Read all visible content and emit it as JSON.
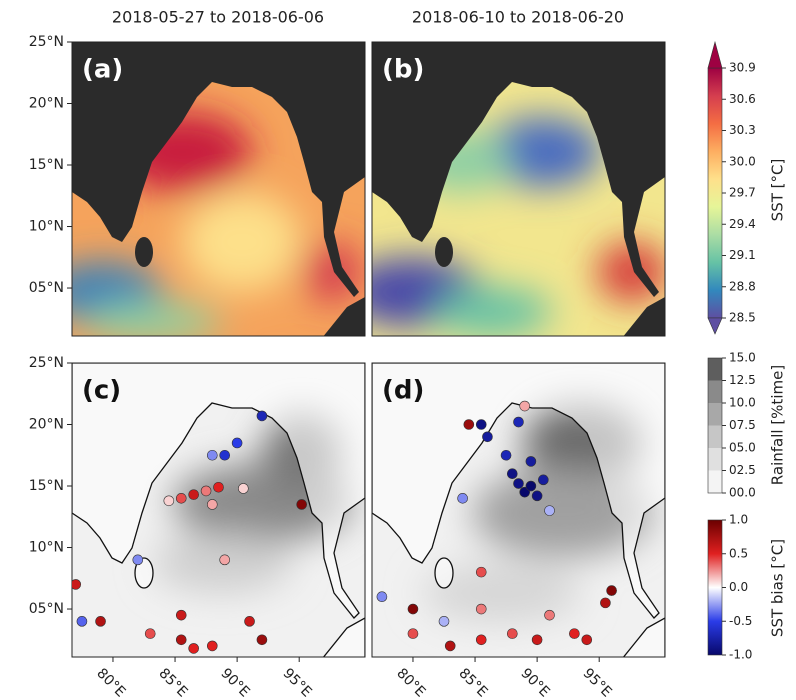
{
  "column_titles": [
    "2018-05-27 to 2018-06-06",
    "2018-06-10 to 2018-06-20"
  ],
  "panels": [
    {
      "label": "(a)"
    },
    {
      "label": "(b)"
    },
    {
      "label": "(c)",
      "points": {
        "lon": [
          84.5,
          85.5,
          86.5,
          87.5,
          88.5,
          88,
          89,
          90,
          92,
          90.5,
          95.2,
          88,
          82,
          77,
          79,
          77.5,
          83,
          85.5,
          85.5,
          88,
          91,
          92,
          86.5,
          89
        ],
        "lat": [
          13.8,
          14.0,
          14.3,
          14.6,
          14.9,
          17.5,
          17.5,
          18.5,
          20.7,
          14.8,
          13.5,
          13.5,
          9,
          7,
          4,
          4,
          3,
          4.5,
          2.5,
          2,
          4,
          2.5,
          1.8,
          9
        ],
        "bias": [
          0.1,
          0.4,
          0.6,
          0.3,
          0.5,
          -0.3,
          -0.6,
          -0.5,
          -0.7,
          0.1,
          0.9,
          0.2,
          -0.3,
          0.6,
          0.7,
          -0.4,
          0.4,
          0.6,
          0.7,
          0.5,
          0.6,
          0.8,
          0.5,
          0.2
        ]
      }
    },
    {
      "label": "(d)",
      "points": {
        "lon": [
          89,
          89.5,
          90,
          88.5,
          90.5,
          88,
          89.5,
          87.5,
          86,
          85.5,
          88.5,
          91,
          84,
          84.5,
          89,
          80,
          80,
          77.5,
          85.5,
          85.5,
          85.5,
          88,
          90,
          91,
          93,
          96,
          95.5,
          94,
          83,
          82.5
        ],
        "lat": [
          14.5,
          15,
          14.2,
          15.2,
          15.5,
          16,
          17,
          17.5,
          19,
          20,
          20.2,
          13,
          14,
          20,
          21.5,
          5,
          3,
          6,
          8,
          5,
          2.5,
          3,
          2.5,
          4.5,
          3,
          6.5,
          5.5,
          2.5,
          2,
          4
        ],
        "bias": [
          -1,
          -1,
          -0.9,
          -0.9,
          -0.8,
          -0.9,
          -0.8,
          -0.7,
          -0.8,
          -0.9,
          -0.7,
          -0.2,
          -0.3,
          0.8,
          0.2,
          0.9,
          0.4,
          -0.3,
          0.4,
          0.3,
          0.5,
          0.4,
          0.6,
          0.3,
          0.5,
          0.9,
          0.7,
          0.6,
          0.7,
          -0.2
        ]
      }
    }
  ],
  "map_axes": {
    "xlim": [
      76.7,
      100.3
    ],
    "ylim": [
      1.1,
      25
    ],
    "xticks": [
      {
        "value": 80,
        "label": "80°E"
      },
      {
        "value": 85,
        "label": "85°E"
      },
      {
        "value": 90,
        "label": "90°E"
      },
      {
        "value": 95,
        "label": "95°E"
      }
    ],
    "yticks": [
      {
        "value": 25,
        "label": "25°N"
      },
      {
        "value": 20,
        "label": "20°N"
      },
      {
        "value": 15,
        "label": "15°N"
      },
      {
        "value": 10,
        "label": "10°N"
      },
      {
        "value": 5,
        "label": "05°N"
      }
    ]
  },
  "colorbars": {
    "sst": {
      "label": "SST [°C]",
      "lim": [
        28.5,
        30.9
      ],
      "ticks": [
        28.5,
        28.8,
        29.1,
        29.4,
        29.7,
        {
          "value": 30,
          "label": "30.0"
        },
        30.3,
        30.6,
        30.9
      ],
      "colors": [
        "#5e4fa2",
        "#3288bd",
        "#66c2a5",
        "#abdda4",
        "#e6f598",
        "#fee08b",
        "#fdae61",
        "#f46d43",
        "#d53e4f",
        "#9e0142"
      ]
    },
    "rainfall": {
      "label": "Rainfall [%time]",
      "lim": [
        0,
        15
      ],
      "ticks": [
        {
          "value": 0,
          "label": "00.0"
        },
        {
          "value": 2.5,
          "label": "02.5"
        },
        {
          "value": 5,
          "label": "05.0"
        },
        {
          "value": 7.5,
          "label": "07.5"
        },
        {
          "value": 10,
          "label": "10.0"
        },
        {
          "value": 12.5,
          "label": "12.5"
        },
        {
          "value": 15,
          "label": "15.0"
        }
      ],
      "colors": [
        "#f4f4f4",
        "#e0e0e0",
        "#c6c6c6",
        "#a8a8a8",
        "#8a8a8a",
        "#5e5e5e"
      ]
    },
    "bias": {
      "label": "SST bias [°C]",
      "lim": [
        -1,
        1
      ],
      "ticks": [
        {
          "value": -1,
          "label": "-1.0"
        },
        -0.5,
        {
          "value": 0,
          "label": "0.0"
        },
        0.5,
        {
          "value": 1,
          "label": "1.0"
        }
      ],
      "colors": [
        "#08086b",
        "#2a3ce8",
        "#ffffff",
        "#e02020",
        "#6b0000"
      ]
    }
  }
}
